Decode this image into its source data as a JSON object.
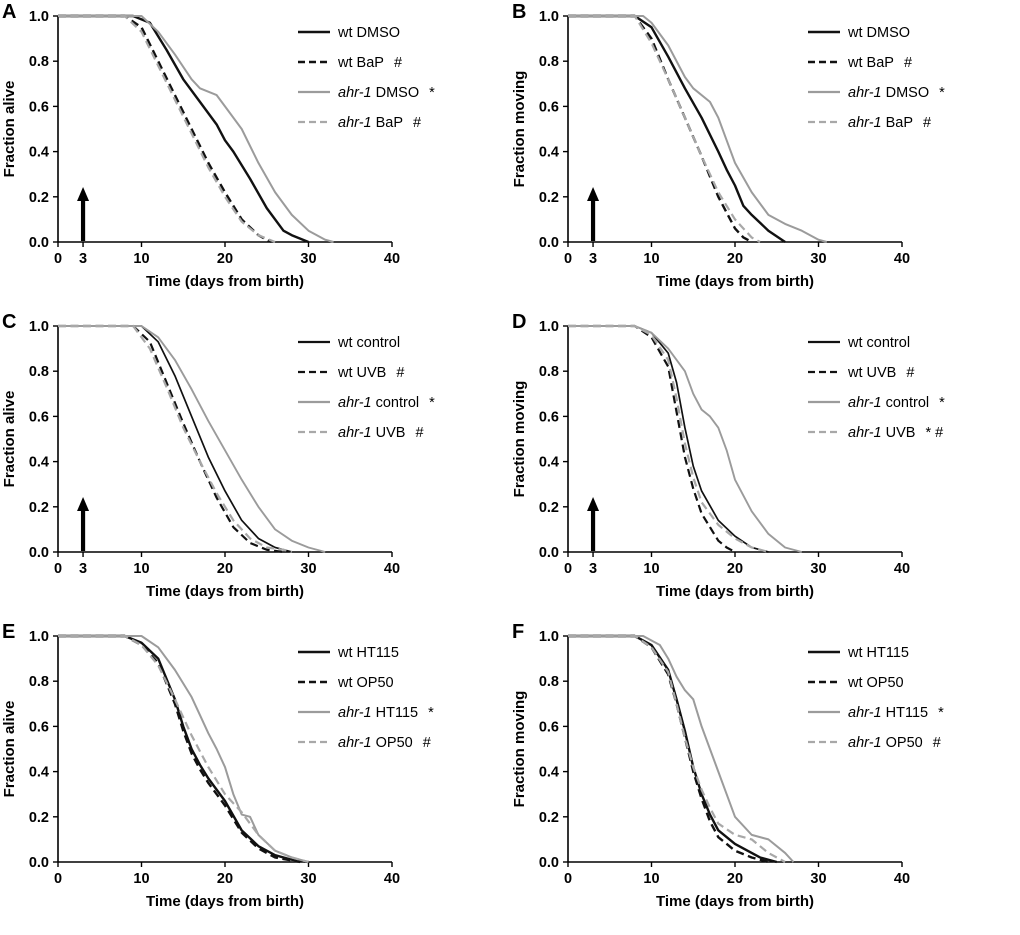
{
  "figure": {
    "background": "#ffffff",
    "black": "#111111",
    "gray": "#9b9b9b"
  },
  "chart_data": [
    {
      "id": "A",
      "type": "line",
      "ylabel": "Fraction alive",
      "xlabel": "Time (days from birth)",
      "xlim": [
        0,
        40
      ],
      "ylim": [
        0,
        1
      ],
      "xticks": [
        0,
        3,
        10,
        20,
        30,
        40
      ],
      "yticks": [
        0,
        0.2,
        0.4,
        0.6,
        0.8,
        1
      ],
      "treatment_arrow_day": 3,
      "series": [
        {
          "strain": "wt",
          "italic": false,
          "treatment": "DMSO",
          "suffix": "",
          "color": "#111111",
          "dash": "solid",
          "width": 2.4,
          "x": [
            0,
            9,
            11,
            13,
            15,
            17,
            19,
            20,
            21,
            23,
            25,
            27,
            28,
            30
          ],
          "y": [
            1,
            1,
            0.97,
            0.85,
            0.72,
            0.62,
            0.52,
            0.45,
            0.4,
            0.28,
            0.15,
            0.05,
            0.03,
            0
          ]
        },
        {
          "strain": "wt",
          "italic": false,
          "treatment": "BaP",
          "suffix": "#",
          "color": "#111111",
          "dash": "dashed",
          "width": 2.4,
          "x": [
            0,
            8,
            10,
            12,
            14,
            16,
            18,
            20,
            22,
            24,
            25.5
          ],
          "y": [
            1,
            1,
            0.95,
            0.8,
            0.65,
            0.5,
            0.35,
            0.22,
            0.1,
            0.03,
            0
          ]
        },
        {
          "strain": "ahr-1",
          "italic": true,
          "treatment": "DMSO",
          "suffix": "*",
          "color": "#9b9b9b",
          "dash": "solid",
          "width": 2.0,
          "x": [
            0,
            10,
            12,
            14,
            16,
            17,
            19,
            20,
            22,
            24,
            26,
            28,
            30,
            32,
            33
          ],
          "y": [
            1,
            1,
            0.93,
            0.83,
            0.72,
            0.68,
            0.65,
            0.6,
            0.5,
            0.35,
            0.22,
            0.12,
            0.05,
            0.01,
            0
          ]
        },
        {
          "strain": "ahr-1",
          "italic": true,
          "treatment": "BaP",
          "suffix": "#",
          "color": "#a8a8a8",
          "dash": "dashed",
          "width": 2.2,
          "x": [
            0,
            8,
            10,
            12,
            14,
            16,
            18,
            20,
            22,
            24,
            26
          ],
          "y": [
            1,
            1,
            0.93,
            0.78,
            0.63,
            0.48,
            0.33,
            0.2,
            0.09,
            0.03,
            0
          ]
        }
      ]
    },
    {
      "id": "B",
      "type": "line",
      "ylabel": "Fraction moving",
      "xlabel": "Time (days from birth)",
      "xlim": [
        0,
        40
      ],
      "ylim": [
        0,
        1
      ],
      "xticks": [
        0,
        3,
        10,
        20,
        30,
        40
      ],
      "yticks": [
        0,
        0.2,
        0.4,
        0.6,
        0.8,
        1
      ],
      "treatment_arrow_day": 3,
      "series": [
        {
          "strain": "wt",
          "italic": false,
          "treatment": "DMSO",
          "suffix": "",
          "color": "#111111",
          "dash": "solid",
          "width": 2.4,
          "x": [
            0,
            8,
            10,
            12,
            14,
            16,
            18,
            19,
            20,
            21,
            22,
            24,
            26
          ],
          "y": [
            1,
            1,
            0.95,
            0.82,
            0.68,
            0.55,
            0.4,
            0.32,
            0.25,
            0.16,
            0.12,
            0.05,
            0
          ]
        },
        {
          "strain": "wt",
          "italic": false,
          "treatment": "BaP",
          "suffix": "#",
          "color": "#111111",
          "dash": "dashed",
          "width": 2.4,
          "x": [
            0,
            8,
            10,
            12,
            14,
            16,
            18,
            20,
            21,
            22
          ],
          "y": [
            1,
            1,
            0.9,
            0.72,
            0.55,
            0.38,
            0.2,
            0.06,
            0.02,
            0
          ]
        },
        {
          "strain": "ahr-1",
          "italic": true,
          "treatment": "DMSO",
          "suffix": "*",
          "color": "#9b9b9b",
          "dash": "solid",
          "width": 2.0,
          "x": [
            0,
            9,
            10,
            12,
            14,
            15,
            17,
            18,
            19,
            20,
            22,
            24,
            26,
            28,
            30,
            31
          ],
          "y": [
            1,
            1,
            0.97,
            0.87,
            0.73,
            0.68,
            0.62,
            0.55,
            0.45,
            0.35,
            0.22,
            0.12,
            0.08,
            0.05,
            0.01,
            0
          ]
        },
        {
          "strain": "ahr-1",
          "italic": true,
          "treatment": "BaP",
          "suffix": "#",
          "color": "#a8a8a8",
          "dash": "dashed",
          "width": 2.2,
          "x": [
            0,
            8,
            10,
            12,
            14,
            16,
            18,
            20,
            22,
            23
          ],
          "y": [
            1,
            1,
            0.88,
            0.72,
            0.55,
            0.38,
            0.22,
            0.1,
            0.02,
            0
          ]
        }
      ]
    },
    {
      "id": "C",
      "type": "line",
      "ylabel": "Fraction alive",
      "xlabel": "Time (days from birth)",
      "xlim": [
        0,
        40
      ],
      "ylim": [
        0,
        1
      ],
      "xticks": [
        0,
        3,
        10,
        20,
        30,
        40
      ],
      "yticks": [
        0,
        0.2,
        0.4,
        0.6,
        0.8,
        1
      ],
      "treatment_arrow_day": 3,
      "series": [
        {
          "strain": "wt",
          "italic": false,
          "treatment": "control",
          "suffix": "",
          "color": "#111111",
          "dash": "solid",
          "width": 1.7,
          "x": [
            0,
            10,
            12,
            14,
            16,
            18,
            20,
            22,
            24,
            26,
            28
          ],
          "y": [
            1,
            1,
            0.93,
            0.78,
            0.6,
            0.42,
            0.27,
            0.14,
            0.06,
            0.02,
            0
          ]
        },
        {
          "strain": "wt",
          "italic": false,
          "treatment": "UVB",
          "suffix": "#",
          "color": "#111111",
          "dash": "dashed",
          "width": 2.2,
          "x": [
            0,
            9,
            11,
            13,
            15,
            17,
            19,
            21,
            23,
            25,
            27
          ],
          "y": [
            1,
            1,
            0.93,
            0.75,
            0.57,
            0.4,
            0.24,
            0.11,
            0.04,
            0.01,
            0
          ]
        },
        {
          "strain": "ahr-1",
          "italic": true,
          "treatment": "control",
          "suffix": "*",
          "color": "#9b9b9b",
          "dash": "solid",
          "width": 1.9,
          "x": [
            0,
            10,
            12,
            14,
            16,
            18,
            20,
            22,
            24,
            26,
            28,
            30,
            32
          ],
          "y": [
            1,
            1,
            0.95,
            0.85,
            0.72,
            0.58,
            0.45,
            0.32,
            0.2,
            0.1,
            0.05,
            0.02,
            0
          ]
        },
        {
          "strain": "ahr-1",
          "italic": true,
          "treatment": "UVB",
          "suffix": "#",
          "color": "#a8a8a8",
          "dash": "dashed",
          "width": 2.2,
          "x": [
            0,
            9,
            11,
            13,
            15,
            17,
            19,
            21,
            23,
            25,
            27,
            28
          ],
          "y": [
            1,
            1,
            0.9,
            0.73,
            0.55,
            0.4,
            0.26,
            0.14,
            0.06,
            0.02,
            0.01,
            0
          ]
        }
      ]
    },
    {
      "id": "D",
      "type": "line",
      "ylabel": "Fraction moving",
      "xlabel": "Time (days from birth)",
      "xlim": [
        0,
        40
      ],
      "ylim": [
        0,
        1
      ],
      "xticks": [
        0,
        3,
        10,
        20,
        30,
        40
      ],
      "yticks": [
        0,
        0.2,
        0.4,
        0.6,
        0.8,
        1
      ],
      "treatment_arrow_day": 3,
      "series": [
        {
          "strain": "wt",
          "italic": false,
          "treatment": "control",
          "suffix": "",
          "color": "#111111",
          "dash": "solid",
          "width": 1.7,
          "x": [
            0,
            8,
            10,
            12,
            13,
            14,
            15,
            16,
            18,
            20,
            22,
            24
          ],
          "y": [
            1,
            1,
            0.97,
            0.88,
            0.75,
            0.55,
            0.38,
            0.27,
            0.14,
            0.07,
            0.02,
            0
          ]
        },
        {
          "strain": "wt",
          "italic": false,
          "treatment": "UVB",
          "suffix": "#",
          "color": "#111111",
          "dash": "dashed",
          "width": 2.2,
          "x": [
            0,
            8,
            10,
            12,
            13,
            14,
            15,
            16,
            18,
            19,
            20
          ],
          "y": [
            1,
            1,
            0.95,
            0.82,
            0.62,
            0.42,
            0.28,
            0.17,
            0.05,
            0.02,
            0
          ]
        },
        {
          "strain": "ahr-1",
          "italic": true,
          "treatment": "control",
          "suffix": "*",
          "color": "#9b9b9b",
          "dash": "solid",
          "width": 1.9,
          "x": [
            0,
            8,
            10,
            12,
            14,
            15,
            16,
            17,
            18,
            19,
            20,
            22,
            24,
            26,
            28
          ],
          "y": [
            1,
            1,
            0.97,
            0.9,
            0.8,
            0.7,
            0.63,
            0.6,
            0.55,
            0.45,
            0.32,
            0.18,
            0.08,
            0.02,
            0
          ]
        },
        {
          "strain": "ahr-1",
          "italic": true,
          "treatment": "UVB",
          "suffix": "* #",
          "color": "#a8a8a8",
          "dash": "dashed",
          "width": 2.2,
          "x": [
            0,
            8,
            10,
            12,
            13,
            14,
            15,
            16,
            18,
            20,
            22,
            24
          ],
          "y": [
            1,
            1,
            0.96,
            0.85,
            0.68,
            0.48,
            0.33,
            0.22,
            0.12,
            0.06,
            0.02,
            0
          ]
        }
      ]
    },
    {
      "id": "E",
      "type": "line",
      "ylabel": "Fraction alive",
      "xlabel": "Time (days from birth)",
      "xlim": [
        0,
        40
      ],
      "ylim": [
        0,
        1
      ],
      "xticks": [
        0,
        10,
        20,
        30,
        40
      ],
      "yticks": [
        0,
        0.2,
        0.4,
        0.6,
        0.8,
        1
      ],
      "treatment_arrow_day": null,
      "series": [
        {
          "strain": "wt",
          "italic": false,
          "treatment": "HT115",
          "suffix": "",
          "color": "#111111",
          "dash": "solid",
          "width": 2.4,
          "x": [
            0,
            8,
            10,
            12,
            14,
            15,
            16,
            17,
            18,
            20,
            22,
            24,
            26,
            28,
            30
          ],
          "y": [
            1,
            1,
            0.97,
            0.9,
            0.72,
            0.6,
            0.5,
            0.43,
            0.37,
            0.27,
            0.14,
            0.07,
            0.03,
            0.01,
            0
          ]
        },
        {
          "strain": "wt",
          "italic": false,
          "treatment": "OP50",
          "suffix": "",
          "color": "#111111",
          "dash": "dashed",
          "width": 2.4,
          "x": [
            0,
            8,
            10,
            12,
            14,
            15,
            16,
            17,
            18,
            20,
            22,
            24,
            26,
            29
          ],
          "y": [
            1,
            1,
            0.96,
            0.88,
            0.7,
            0.58,
            0.48,
            0.41,
            0.35,
            0.25,
            0.13,
            0.06,
            0.02,
            0
          ]
        },
        {
          "strain": "ahr-1",
          "italic": true,
          "treatment": "HT115",
          "suffix": "*",
          "color": "#9b9b9b",
          "dash": "solid",
          "width": 2.0,
          "x": [
            0,
            10,
            12,
            14,
            16,
            17,
            18,
            19,
            20,
            21,
            22,
            23,
            24,
            26,
            28,
            30
          ],
          "y": [
            1,
            1,
            0.95,
            0.85,
            0.73,
            0.65,
            0.57,
            0.5,
            0.42,
            0.3,
            0.21,
            0.2,
            0.12,
            0.05,
            0.02,
            0
          ]
        },
        {
          "strain": "ahr-1",
          "italic": true,
          "treatment": "OP50",
          "suffix": "#",
          "color": "#a8a8a8",
          "dash": "dashed",
          "width": 2.2,
          "x": [
            0,
            8,
            10,
            12,
            14,
            16,
            18,
            20,
            22,
            24,
            26,
            28,
            30
          ],
          "y": [
            1,
            1,
            0.96,
            0.87,
            0.72,
            0.56,
            0.42,
            0.3,
            0.22,
            0.12,
            0.05,
            0.02,
            0
          ]
        }
      ]
    },
    {
      "id": "F",
      "type": "line",
      "ylabel": "Fraction moving",
      "xlabel": "Time (days from birth)",
      "xlim": [
        0,
        40
      ],
      "ylim": [
        0,
        1
      ],
      "xticks": [
        0,
        10,
        20,
        30,
        40
      ],
      "yticks": [
        0,
        0.2,
        0.4,
        0.6,
        0.8,
        1
      ],
      "treatment_arrow_day": null,
      "series": [
        {
          "strain": "wt",
          "italic": false,
          "treatment": "HT115",
          "suffix": "",
          "color": "#111111",
          "dash": "solid",
          "width": 2.4,
          "x": [
            0,
            8,
            10,
            12,
            13,
            14,
            15,
            16,
            17,
            18,
            20,
            22,
            23,
            25
          ],
          "y": [
            1,
            1,
            0.96,
            0.85,
            0.72,
            0.58,
            0.42,
            0.3,
            0.21,
            0.14,
            0.08,
            0.04,
            0.02,
            0
          ]
        },
        {
          "strain": "wt",
          "italic": false,
          "treatment": "OP50",
          "suffix": "",
          "color": "#111111",
          "dash": "dashed",
          "width": 2.4,
          "x": [
            0,
            8,
            10,
            12,
            13,
            14,
            15,
            16,
            17,
            18,
            20,
            22,
            24
          ],
          "y": [
            1,
            1,
            0.95,
            0.83,
            0.7,
            0.55,
            0.4,
            0.28,
            0.18,
            0.11,
            0.05,
            0.02,
            0
          ]
        },
        {
          "strain": "ahr-1",
          "italic": true,
          "treatment": "HT115",
          "suffix": "*",
          "color": "#9b9b9b",
          "dash": "solid",
          "width": 2.0,
          "x": [
            0,
            9,
            11,
            12,
            13,
            14,
            15,
            16,
            17,
            18,
            19,
            20,
            22,
            24,
            26,
            27
          ],
          "y": [
            1,
            1,
            0.96,
            0.9,
            0.82,
            0.76,
            0.72,
            0.6,
            0.5,
            0.4,
            0.3,
            0.2,
            0.12,
            0.1,
            0.04,
            0
          ]
        },
        {
          "strain": "ahr-1",
          "italic": true,
          "treatment": "OP50",
          "suffix": "#",
          "color": "#a8a8a8",
          "dash": "dashed",
          "width": 2.2,
          "x": [
            0,
            8,
            10,
            12,
            13,
            14,
            15,
            16,
            17,
            18,
            20,
            22,
            24,
            26
          ],
          "y": [
            1,
            1,
            0.95,
            0.84,
            0.7,
            0.55,
            0.42,
            0.32,
            0.24,
            0.17,
            0.12,
            0.1,
            0.04,
            0
          ]
        }
      ]
    }
  ]
}
